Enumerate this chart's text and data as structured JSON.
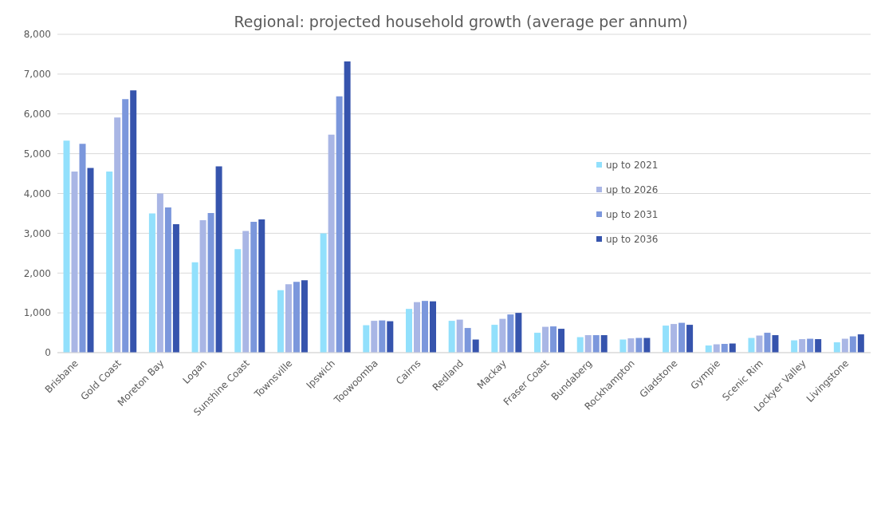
{
  "chart_data": {
    "type": "bar",
    "title": "Regional: projected household growth (average per annum)",
    "categories": [
      "Brisbane",
      "Gold Coast",
      "Moreton Bay",
      "Logan",
      "Sunshine Coast",
      "Townsville",
      "Ipswich",
      "Toowoomba",
      "Cairns",
      "Redland",
      "Mackay",
      "Fraser Coast",
      "Bundaberg",
      "Rockhampton",
      "Gladstone",
      "Gympie",
      "Scenic Rim",
      "Lockyer Valley",
      "Livingstone"
    ],
    "series": [
      {
        "name": "up to 2021",
        "color": "#92e0fc",
        "values": [
          5330,
          4550,
          3500,
          2270,
          2600,
          1570,
          3000,
          690,
          1100,
          800,
          700,
          500,
          390,
          330,
          680,
          180,
          370,
          310,
          260
        ]
      },
      {
        "name": "up to 2026",
        "color": "#a9b6e5",
        "values": [
          4550,
          5910,
          4000,
          3330,
          3060,
          1720,
          5480,
          800,
          1270,
          830,
          850,
          650,
          440,
          360,
          720,
          210,
          430,
          340,
          350
        ]
      },
      {
        "name": "up to 2031",
        "color": "#7b97dc",
        "values": [
          5250,
          6370,
          3650,
          3510,
          3290,
          1780,
          6440,
          810,
          1300,
          620,
          960,
          660,
          440,
          370,
          750,
          220,
          500,
          350,
          410
        ]
      },
      {
        "name": "up to 2036",
        "color": "#3654ad",
        "values": [
          4640,
          6590,
          3230,
          4680,
          3350,
          1820,
          7320,
          790,
          1290,
          330,
          1000,
          600,
          440,
          370,
          700,
          230,
          440,
          340,
          460
        ]
      }
    ],
    "ylim": [
      0,
      8000
    ],
    "yticks": [
      {
        "value": 0,
        "label": "0"
      },
      {
        "value": 1000,
        "label": "1,000"
      },
      {
        "value": 2000,
        "label": "2,000"
      },
      {
        "value": 3000,
        "label": "3,000"
      },
      {
        "value": 4000,
        "label": "4,000"
      },
      {
        "value": 5000,
        "label": "5,000"
      },
      {
        "value": 6000,
        "label": "6,000"
      },
      {
        "value": 7000,
        "label": "7,000"
      },
      {
        "value": 8000,
        "label": "8,000"
      }
    ],
    "grid": "y",
    "legend": "right"
  }
}
